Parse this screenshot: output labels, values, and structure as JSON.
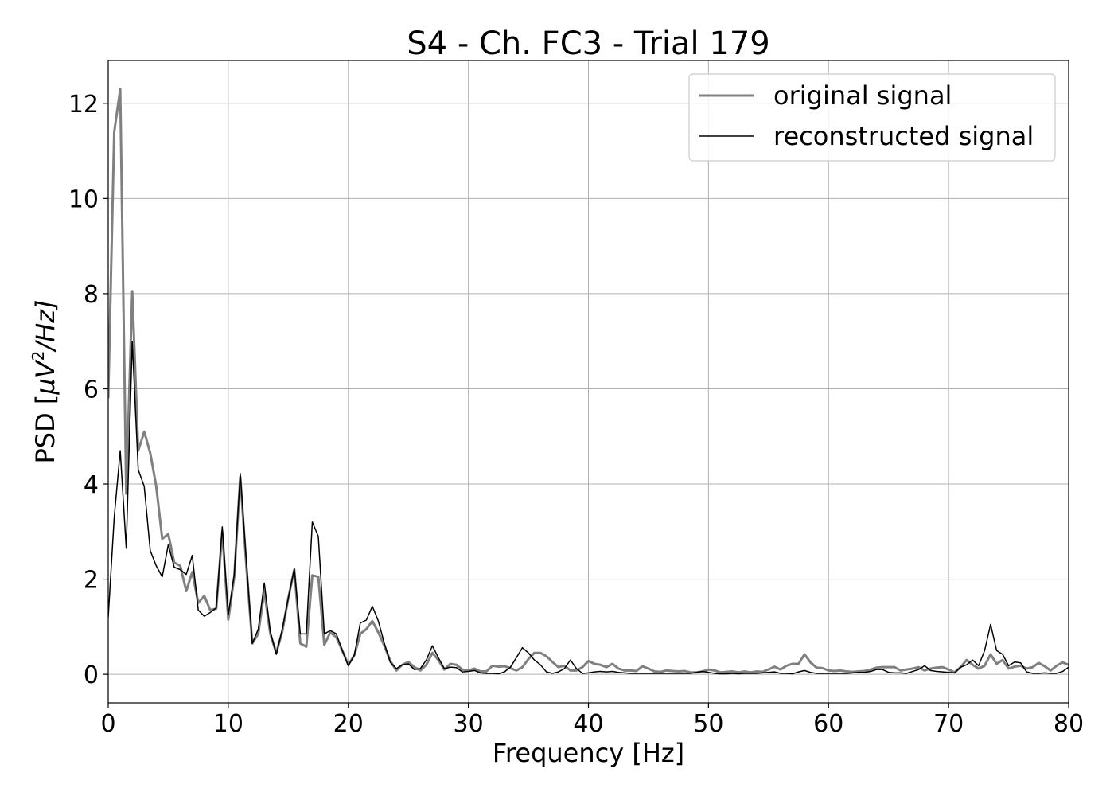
{
  "chart_data": {
    "type": "line",
    "title": "S4 - Ch. FC3 - Trial 179",
    "xlabel": "Frequency [Hz]",
    "ylabel_prefix": "PSD [",
    "ylabel_math": "μV",
    "ylabel_exp": "2",
    "ylabel_suffix": "/Hz]",
    "xlim": [
      0,
      80
    ],
    "ylim": [
      -0.6,
      12.9
    ],
    "xticks": [
      0,
      10,
      20,
      30,
      40,
      50,
      60,
      70,
      80
    ],
    "yticks": [
      0,
      2,
      4,
      6,
      8,
      10,
      12
    ],
    "grid": true,
    "legend": "top-right",
    "x_start": 0,
    "x_step": 0.5,
    "series": [
      {
        "name": "original signal",
        "color": "#808080",
        "values": [
          5.8,
          11.4,
          12.3,
          3.8,
          8.05,
          4.7,
          5.1,
          4.65,
          3.95,
          2.85,
          2.95,
          2.35,
          2.28,
          1.75,
          2.15,
          1.5,
          1.65,
          1.35,
          1.38,
          3.0,
          1.15,
          2.05,
          4.15,
          2.3,
          0.65,
          0.85,
          1.75,
          0.85,
          0.45,
          0.9,
          1.6,
          2.2,
          0.65,
          0.58,
          2.08,
          2.05,
          0.62,
          0.88,
          0.78,
          0.5,
          0.2,
          0.4,
          0.85,
          0.95,
          1.12,
          0.88,
          0.6,
          0.28,
          0.08,
          0.2,
          0.26,
          0.15,
          0.08,
          0.2,
          0.45,
          0.3,
          0.1,
          0.22,
          0.2,
          0.1,
          0.08,
          0.12,
          0.06,
          0.06,
          0.18,
          0.16,
          0.17,
          0.13,
          0.08,
          0.15,
          0.32,
          0.45,
          0.45,
          0.38,
          0.26,
          0.15,
          0.18,
          0.08,
          0.08,
          0.15,
          0.28,
          0.22,
          0.2,
          0.15,
          0.22,
          0.12,
          0.08,
          0.08,
          0.07,
          0.17,
          0.12,
          0.06,
          0.05,
          0.08,
          0.07,
          0.06,
          0.07,
          0.04,
          0.04,
          0.06,
          0.1,
          0.08,
          0.04,
          0.05,
          0.06,
          0.04,
          0.06,
          0.04,
          0.06,
          0.05,
          0.1,
          0.16,
          0.1,
          0.18,
          0.22,
          0.22,
          0.42,
          0.25,
          0.14,
          0.13,
          0.08,
          0.07,
          0.08,
          0.06,
          0.05,
          0.06,
          0.07,
          0.1,
          0.14,
          0.15,
          0.15,
          0.15,
          0.08,
          0.1,
          0.12,
          0.15,
          0.08,
          0.12,
          0.14,
          0.15,
          0.1,
          0.04,
          0.15,
          0.3,
          0.2,
          0.12,
          0.18,
          0.42,
          0.22,
          0.3,
          0.12,
          0.16,
          0.18,
          0.12,
          0.15,
          0.24,
          0.17,
          0.08,
          0.18,
          0.25,
          0.2
        ]
      },
      {
        "name": "reconstructed signal",
        "color": "#000000",
        "values": [
          1.2,
          3.3,
          4.7,
          2.65,
          7.0,
          4.3,
          3.95,
          2.6,
          2.28,
          2.05,
          2.72,
          2.25,
          2.2,
          2.1,
          2.5,
          1.35,
          1.22,
          1.3,
          1.4,
          3.1,
          1.25,
          2.1,
          4.22,
          2.4,
          0.65,
          0.95,
          1.92,
          0.9,
          0.42,
          0.95,
          1.6,
          2.22,
          0.85,
          0.85,
          3.2,
          2.9,
          0.85,
          0.92,
          0.85,
          0.5,
          0.18,
          0.4,
          1.08,
          1.14,
          1.43,
          1.12,
          0.65,
          0.25,
          0.12,
          0.2,
          0.22,
          0.1,
          0.12,
          0.3,
          0.6,
          0.35,
          0.12,
          0.15,
          0.14,
          0.05,
          0.06,
          0.08,
          0.03,
          0.02,
          0.02,
          0.01,
          0.05,
          0.15,
          0.35,
          0.56,
          0.45,
          0.3,
          0.2,
          0.05,
          0.02,
          0.05,
          0.12,
          0.3,
          0.12,
          0.02,
          0.03,
          0.05,
          0.06,
          0.05,
          0.06,
          0.04,
          0.03,
          0.02,
          0.02,
          0.02,
          0.02,
          0.02,
          0.02,
          0.02,
          0.02,
          0.02,
          0.02,
          0.02,
          0.04,
          0.06,
          0.04,
          0.02,
          0.01,
          0.01,
          0.02,
          0.01,
          0.02,
          0.02,
          0.02,
          0.03,
          0.04,
          0.05,
          0.02,
          0.02,
          0.01,
          0.05,
          0.08,
          0.04,
          0.02,
          0.02,
          0.02,
          0.02,
          0.02,
          0.02,
          0.03,
          0.04,
          0.04,
          0.06,
          0.1,
          0.1,
          0.04,
          0.03,
          0.03,
          0.02,
          0.06,
          0.1,
          0.18,
          0.08,
          0.06,
          0.05,
          0.04,
          0.03,
          0.15,
          0.2,
          0.3,
          0.18,
          0.5,
          1.05,
          0.5,
          0.42,
          0.18,
          0.26,
          0.24,
          0.05,
          0.02,
          0.02,
          0.03,
          0.02,
          0.02,
          0.06,
          0.15
        ]
      }
    ]
  }
}
